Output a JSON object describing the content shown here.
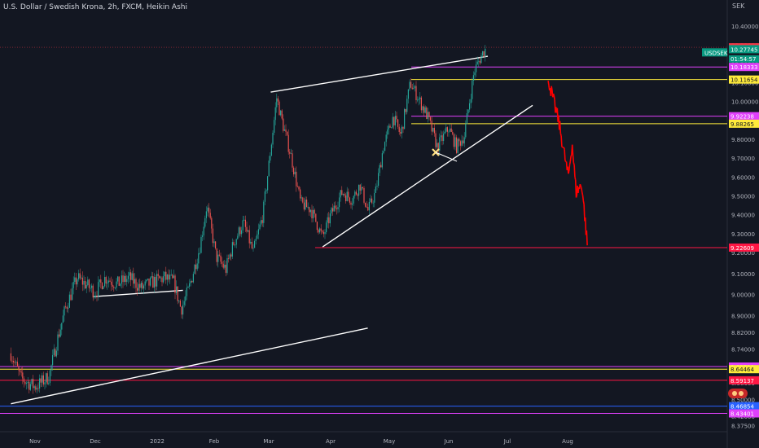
{
  "chart_title": "U.S. Dollar / Swedish Krona, 2h, FXCM, Heikin Ashi",
  "y_axis_unit": "SEK",
  "ticker_label": "USDSEK",
  "countdown": "01:54:57",
  "chart_data": {
    "type": "candlestick",
    "title": "U.S. Dollar / Swedish Krona, 2h, FXCM, Heikin Ashi",
    "symbol": "USDSEK",
    "ylim": [
      8.35,
      10.45
    ],
    "y_ticks": [
      "10.40000",
      "10.30000",
      "10.20000",
      "10.10000",
      "10.00000",
      "9.90000",
      "9.80000",
      "9.70000",
      "9.60000",
      "9.50000",
      "9.40000",
      "9.30000",
      "9.20000",
      "9.10000",
      "9.00000",
      "8.90000",
      "8.82000",
      "8.74000",
      "8.66000",
      "8.58000",
      "8.50000",
      "8.42000",
      "8.37500"
    ],
    "x_ticks": [
      "Nov",
      "Dec",
      "2022",
      "Feb",
      "Mar",
      "Apr",
      "May",
      "Jun",
      "Jul",
      "Aug"
    ],
    "price_path": [
      [
        "2021-10-20",
        8.72
      ],
      [
        "2021-10-25",
        8.6
      ],
      [
        "2021-11-01",
        8.56
      ],
      [
        "2021-11-04",
        8.58
      ],
      [
        "2021-11-08",
        8.61
      ],
      [
        "2021-11-12",
        8.78
      ],
      [
        "2021-11-16",
        8.93
      ],
      [
        "2021-11-22",
        9.08
      ],
      [
        "2021-11-26",
        9.05
      ],
      [
        "2021-12-01",
        9.01
      ],
      [
        "2021-12-06",
        9.08
      ],
      [
        "2021-12-12",
        9.05
      ],
      [
        "2021-12-18",
        9.08
      ],
      [
        "2021-12-24",
        9.03
      ],
      [
        "2021-12-30",
        9.06
      ],
      [
        "2022-01-05",
        9.08
      ],
      [
        "2022-01-10",
        9.06
      ],
      [
        "2022-01-14",
        8.93
      ],
      [
        "2022-01-18",
        9.02
      ],
      [
        "2022-01-24",
        9.22
      ],
      [
        "2022-01-28",
        9.45
      ],
      [
        "2022-02-02",
        9.18
      ],
      [
        "2022-02-07",
        9.12
      ],
      [
        "2022-02-11",
        9.25
      ],
      [
        "2022-02-16",
        9.36
      ],
      [
        "2022-02-21",
        9.2
      ],
      [
        "2022-02-26",
        9.4
      ],
      [
        "2022-03-01",
        9.66
      ],
      [
        "2022-03-05",
        10.02
      ],
      [
        "2022-03-08",
        9.88
      ],
      [
        "2022-03-12",
        9.72
      ],
      [
        "2022-03-17",
        9.46
      ],
      [
        "2022-03-22",
        9.43
      ],
      [
        "2022-03-28",
        9.28
      ],
      [
        "2022-04-01",
        9.4
      ],
      [
        "2022-04-07",
        9.52
      ],
      [
        "2022-04-12",
        9.48
      ],
      [
        "2022-04-16",
        9.56
      ],
      [
        "2022-04-20",
        9.42
      ],
      [
        "2022-04-24",
        9.52
      ],
      [
        "2022-04-28",
        9.76
      ],
      [
        "2022-05-03",
        9.92
      ],
      [
        "2022-05-07",
        9.82
      ],
      [
        "2022-05-12",
        10.1
      ],
      [
        "2022-05-16",
        10.02
      ],
      [
        "2022-05-21",
        9.92
      ],
      [
        "2022-05-26",
        9.76
      ],
      [
        "2022-06-01",
        9.86
      ],
      [
        "2022-06-05",
        9.76
      ],
      [
        "2022-06-09",
        9.82
      ],
      [
        "2022-06-14",
        10.16
      ],
      [
        "2022-06-18",
        10.25
      ],
      [
        "2022-06-20",
        10.28
      ]
    ],
    "projected_path": [
      [
        "2022-07-22",
        10.11
      ],
      [
        "2022-07-24",
        10.02
      ],
      [
        "2022-07-27",
        9.9
      ],
      [
        "2022-07-30",
        9.72
      ],
      [
        "2022-08-01",
        9.6
      ],
      [
        "2022-08-03",
        9.78
      ],
      [
        "2022-08-05",
        9.52
      ],
      [
        "2022-08-08",
        9.56
      ],
      [
        "2022-08-11",
        9.22
      ]
    ],
    "horizontal_levels": [
      {
        "value": 10.28755,
        "label": "10.28755",
        "color": "#f23645"
      },
      {
        "value": 10.27745,
        "label": "10.27745",
        "color": "#089981"
      },
      {
        "value": 10.18333,
        "label": "10.18333",
        "color": "#e040fb"
      },
      {
        "value": 10.11654,
        "label": "10.11654",
        "color": "#ffeb3b"
      },
      {
        "value": 9.92238,
        "label": "9.92238",
        "color": "#e040fb"
      },
      {
        "value": 9.88265,
        "label": "9.88265",
        "color": "#ffeb3b"
      },
      {
        "value": 9.22609,
        "label": "9.22609",
        "color": "#ff1744"
      },
      {
        "value": 8.657,
        "label": "8.65700",
        "color": "#e040fb"
      },
      {
        "value": 8.64464,
        "label": "8.64464",
        "color": "#ffeb3b"
      },
      {
        "value": 8.59137,
        "label": "8.59137",
        "color": "#ff1744"
      },
      {
        "value": 8.46854,
        "label": "8.46854",
        "color": "#2962ff"
      },
      {
        "value": 8.43401,
        "label": "8.43401",
        "color": "#e040fb"
      }
    ],
    "trendlines": [
      {
        "from": [
          "2022-03-02",
          10.05
        ],
        "to": [
          "2022-06-21",
          10.24
        ]
      },
      {
        "from": [
          "2022-03-28",
          9.23
        ],
        "to": [
          "2022-07-14",
          9.98
        ]
      },
      {
        "from": [
          "2021-10-20",
          8.48
        ],
        "to": [
          "2022-04-20",
          8.84
        ]
      },
      {
        "from": [
          "2021-11-30",
          8.99
        ],
        "to": [
          "2022-01-15",
          9.02
        ]
      }
    ],
    "colors": {
      "up": "#26a69a",
      "down": "#ef5350",
      "projection": "#ff0000",
      "trendline": "#ffffff",
      "background": "#131722"
    }
  }
}
